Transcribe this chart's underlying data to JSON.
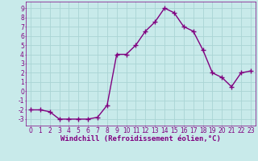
{
  "x": [
    0,
    1,
    2,
    3,
    4,
    5,
    6,
    7,
    8,
    9,
    10,
    11,
    12,
    13,
    14,
    15,
    16,
    17,
    18,
    19,
    20,
    21,
    22,
    23
  ],
  "y": [
    -2.0,
    -2.0,
    -2.2,
    -3.0,
    -3.0,
    -3.0,
    -3.0,
    -2.8,
    -1.5,
    4.0,
    4.0,
    5.0,
    6.5,
    7.5,
    9.0,
    8.5,
    7.0,
    6.5,
    4.5,
    2.0,
    1.5,
    0.5,
    2.0,
    2.2
  ],
  "line_color": "#800080",
  "marker": "+",
  "marker_color": "#800080",
  "xlabel": "Windchill (Refroidissement éolien,°C)",
  "xlim": [
    -0.5,
    23.5
  ],
  "ylim": [
    -3.7,
    9.7
  ],
  "xticks": [
    0,
    1,
    2,
    3,
    4,
    5,
    6,
    7,
    8,
    9,
    10,
    11,
    12,
    13,
    14,
    15,
    16,
    17,
    18,
    19,
    20,
    21,
    22,
    23
  ],
  "yticks": [
    -3,
    -2,
    -1,
    0,
    1,
    2,
    3,
    4,
    5,
    6,
    7,
    8,
    9
  ],
  "bg_color": "#c8eaea",
  "grid_color": "#aad4d4",
  "tick_color": "#800080",
  "spine_color": "#800080",
  "tick_fontsize": 5.5,
  "label_fontsize": 6.5,
  "line_width": 1.0,
  "marker_size": 4
}
